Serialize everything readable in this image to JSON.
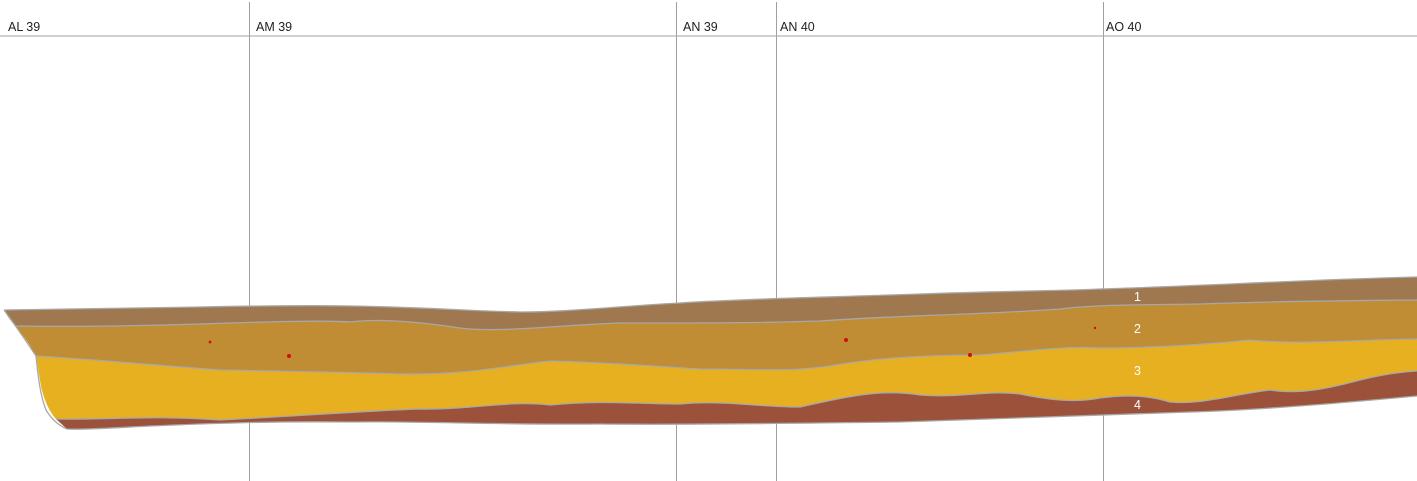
{
  "grid_squares": [
    {
      "label": "AL 39"
    },
    {
      "label": "AM 39"
    },
    {
      "label": "AN 39"
    },
    {
      "label": "AN 40"
    },
    {
      "label": "AO 40"
    }
  ],
  "layers": [
    {
      "number": "1",
      "color": "#a07850"
    },
    {
      "number": "2",
      "color": "#c08c34"
    },
    {
      "number": "3",
      "color": "#e6b020"
    },
    {
      "number": "4",
      "color": "#9c523a"
    }
  ],
  "finds": {
    "count": 5,
    "color": "#cc1111"
  },
  "colors": {
    "grid_line": "#a0a0a0",
    "boundary": "#a8a8a8"
  }
}
